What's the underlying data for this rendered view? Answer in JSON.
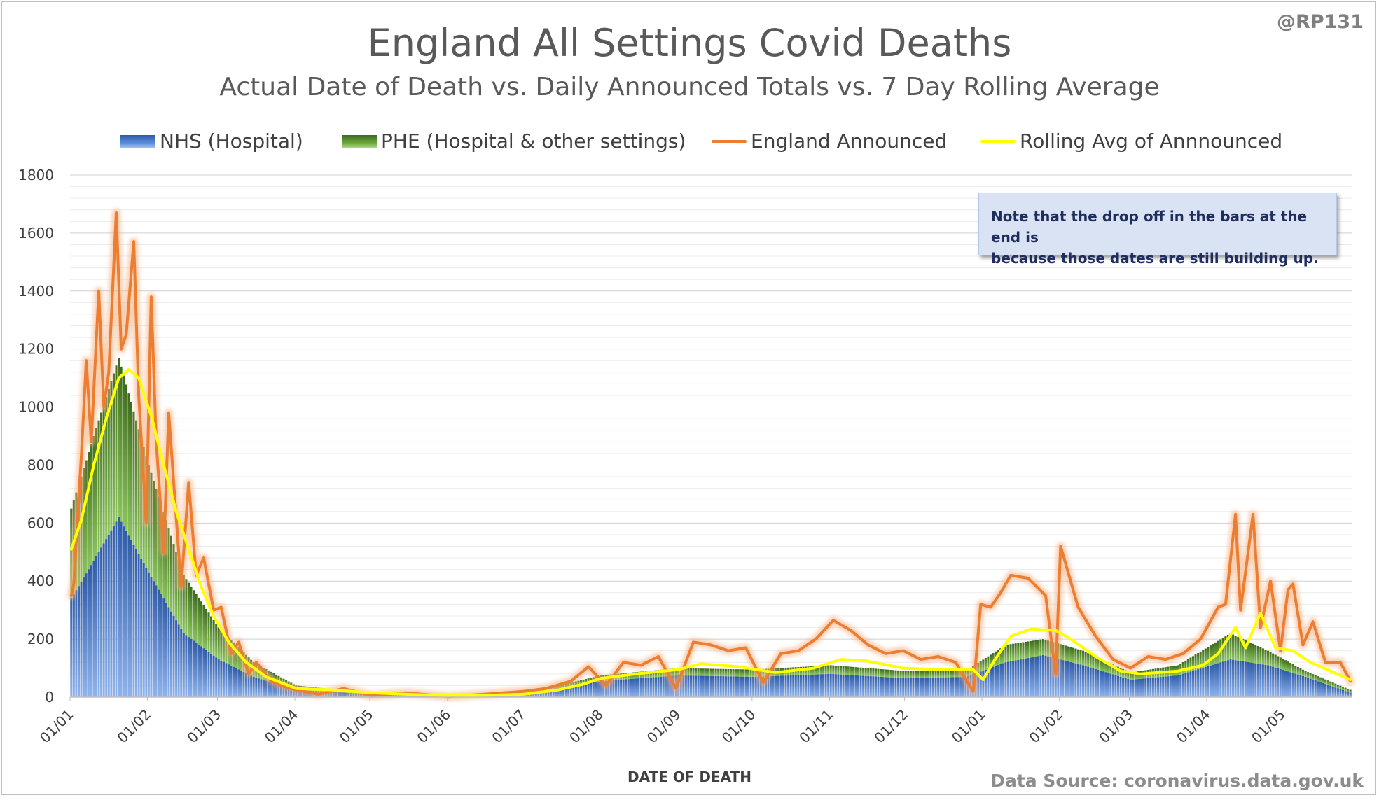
{
  "title": "England All Settings Covid Deaths",
  "subtitle": "Actual Date of Death vs. Daily Announced Totals vs. 7 Day Rolling Average",
  "handle": "@RP131",
  "note": {
    "line1": "Note that the drop off in the bars at the end is",
    "line2": "because those dates are still building up."
  },
  "source": "Data Source: coronavirus.data.gov.uk",
  "legend": [
    {
      "label": "NHS (Hospital)",
      "color": "#4472c4"
    },
    {
      "label": "PHE (Hospital & other settings)",
      "color": "#70ad47"
    },
    {
      "label": "England Announced",
      "color": "#ed7d31"
    },
    {
      "label": "Rolling Avg of Annnounced",
      "color": "#ffff00"
    }
  ],
  "chart_data": {
    "type": "bar",
    "xlabel": "DATE OF DEATH",
    "ylabel": "",
    "ylim": [
      0,
      1800
    ],
    "y_ticks": [
      0,
      200,
      400,
      600,
      800,
      1000,
      1200,
      1400,
      1600,
      1800
    ],
    "x_tick_labels": [
      "01/01",
      "01/02",
      "01/03",
      "01/04",
      "01/05",
      "01/06",
      "01/07",
      "01/08",
      "01/09",
      "01/10",
      "01/11",
      "01/12",
      "01/01",
      "01/02",
      "01/03",
      "01/04",
      "01/05"
    ],
    "x_range": [
      "2021-01-01",
      "2022-05-28"
    ],
    "stacked": true,
    "bar_series": [
      {
        "name": "NHS (Hospital)",
        "color": "#4472c4",
        "points": [
          [
            "2021-01-01",
            340
          ],
          [
            "2021-01-10",
            470
          ],
          [
            "2021-01-20",
            620
          ],
          [
            "2021-02-01",
            430
          ],
          [
            "2021-02-15",
            220
          ],
          [
            "2021-03-01",
            130
          ],
          [
            "2021-03-15",
            70
          ],
          [
            "2021-04-01",
            25
          ],
          [
            "2021-05-01",
            10
          ],
          [
            "2021-06-01",
            4
          ],
          [
            "2021-07-01",
            10
          ],
          [
            "2021-07-15",
            30
          ],
          [
            "2021-08-01",
            55
          ],
          [
            "2021-09-01",
            75
          ],
          [
            "2021-10-01",
            70
          ],
          [
            "2021-11-01",
            80
          ],
          [
            "2021-12-01",
            65
          ],
          [
            "2021-12-25",
            70
          ],
          [
            "2022-01-10",
            120
          ],
          [
            "2022-01-25",
            145
          ],
          [
            "2022-02-10",
            110
          ],
          [
            "2022-03-01",
            60
          ],
          [
            "2022-03-20",
            75
          ],
          [
            "2022-04-10",
            130
          ],
          [
            "2022-04-25",
            110
          ],
          [
            "2022-05-10",
            70
          ],
          [
            "2022-05-28",
            15
          ]
        ]
      },
      {
        "name": "PHE (Hospital & other settings)",
        "color": "#70ad47",
        "points": [
          [
            "2021-01-01",
            650
          ],
          [
            "2021-01-10",
            900
          ],
          [
            "2021-01-20",
            1170
          ],
          [
            "2021-02-01",
            800
          ],
          [
            "2021-02-15",
            420
          ],
          [
            "2021-03-01",
            240
          ],
          [
            "2021-03-15",
            120
          ],
          [
            "2021-04-01",
            40
          ],
          [
            "2021-05-01",
            15
          ],
          [
            "2021-06-01",
            6
          ],
          [
            "2021-07-01",
            15
          ],
          [
            "2021-07-15",
            40
          ],
          [
            "2021-08-01",
            75
          ],
          [
            "2021-09-01",
            100
          ],
          [
            "2021-10-01",
            95
          ],
          [
            "2021-11-01",
            110
          ],
          [
            "2021-12-01",
            90
          ],
          [
            "2021-12-25",
            90
          ],
          [
            "2022-01-10",
            180
          ],
          [
            "2022-01-25",
            200
          ],
          [
            "2022-02-10",
            160
          ],
          [
            "2022-03-01",
            85
          ],
          [
            "2022-03-20",
            110
          ],
          [
            "2022-04-10",
            220
          ],
          [
            "2022-04-25",
            160
          ],
          [
            "2022-05-10",
            90
          ],
          [
            "2022-05-28",
            25
          ]
        ]
      }
    ],
    "line_series": [
      {
        "name": "England Announced",
        "color": "#ed7d31",
        "points": [
          [
            "2021-01-01",
            350
          ],
          [
            "2021-01-02",
            390
          ],
          [
            "2021-01-05",
            830
          ],
          [
            "2021-01-07",
            1160
          ],
          [
            "2021-01-09",
            880
          ],
          [
            "2021-01-12",
            1400
          ],
          [
            "2021-01-14",
            1000
          ],
          [
            "2021-01-16",
            1120
          ],
          [
            "2021-01-19",
            1670
          ],
          [
            "2021-01-21",
            1200
          ],
          [
            "2021-01-23",
            1250
          ],
          [
            "2021-01-26",
            1570
          ],
          [
            "2021-01-28",
            1040
          ],
          [
            "2021-01-31",
            600
          ],
          [
            "2021-02-02",
            1380
          ],
          [
            "2021-02-04",
            880
          ],
          [
            "2021-02-07",
            500
          ],
          [
            "2021-02-09",
            980
          ],
          [
            "2021-02-12",
            620
          ],
          [
            "2021-02-14",
            380
          ],
          [
            "2021-02-17",
            740
          ],
          [
            "2021-02-20",
            420
          ],
          [
            "2021-02-23",
            480
          ],
          [
            "2021-02-27",
            300
          ],
          [
            "2021-03-02",
            310
          ],
          [
            "2021-03-06",
            150
          ],
          [
            "2021-03-09",
            190
          ],
          [
            "2021-03-13",
            80
          ],
          [
            "2021-03-16",
            120
          ],
          [
            "2021-03-22",
            55
          ],
          [
            "2021-03-26",
            40
          ],
          [
            "2021-04-01",
            25
          ],
          [
            "2021-04-10",
            10
          ],
          [
            "2021-04-20",
            30
          ],
          [
            "2021-05-01",
            5
          ],
          [
            "2021-05-15",
            15
          ],
          [
            "2021-06-01",
            2
          ],
          [
            "2021-06-15",
            10
          ],
          [
            "2021-07-01",
            20
          ],
          [
            "2021-07-10",
            30
          ],
          [
            "2021-07-20",
            55
          ],
          [
            "2021-07-27",
            105
          ],
          [
            "2021-08-03",
            40
          ],
          [
            "2021-08-10",
            120
          ],
          [
            "2021-08-17",
            110
          ],
          [
            "2021-08-24",
            140
          ],
          [
            "2021-08-31",
            30
          ],
          [
            "2021-09-07",
            190
          ],
          [
            "2021-09-14",
            180
          ],
          [
            "2021-09-21",
            160
          ],
          [
            "2021-09-28",
            170
          ],
          [
            "2021-10-05",
            50
          ],
          [
            "2021-10-12",
            150
          ],
          [
            "2021-10-19",
            160
          ],
          [
            "2021-10-26",
            200
          ],
          [
            "2021-11-02",
            265
          ],
          [
            "2021-11-09",
            230
          ],
          [
            "2021-11-16",
            180
          ],
          [
            "2021-11-23",
            150
          ],
          [
            "2021-11-30",
            160
          ],
          [
            "2021-12-07",
            130
          ],
          [
            "2021-12-14",
            140
          ],
          [
            "2021-12-21",
            120
          ],
          [
            "2021-12-28",
            20
          ],
          [
            "2021-12-31",
            320
          ],
          [
            "2022-01-04",
            310
          ],
          [
            "2022-01-08",
            360
          ],
          [
            "2022-01-12",
            420
          ],
          [
            "2022-01-19",
            410
          ],
          [
            "2022-01-26",
            350
          ],
          [
            "2022-01-30",
            80
          ],
          [
            "2022-02-01",
            520
          ],
          [
            "2022-02-08",
            310
          ],
          [
            "2022-02-15",
            210
          ],
          [
            "2022-02-22",
            130
          ],
          [
            "2022-03-01",
            100
          ],
          [
            "2022-03-08",
            140
          ],
          [
            "2022-03-15",
            130
          ],
          [
            "2022-03-22",
            150
          ],
          [
            "2022-03-29",
            200
          ],
          [
            "2022-04-05",
            310
          ],
          [
            "2022-04-08",
            320
          ],
          [
            "2022-04-12",
            630
          ],
          [
            "2022-04-14",
            300
          ],
          [
            "2022-04-19",
            630
          ],
          [
            "2022-04-22",
            240
          ],
          [
            "2022-04-26",
            400
          ],
          [
            "2022-04-30",
            160
          ],
          [
            "2022-05-03",
            370
          ],
          [
            "2022-05-05",
            390
          ],
          [
            "2022-05-09",
            180
          ],
          [
            "2022-05-13",
            260
          ],
          [
            "2022-05-18",
            120
          ],
          [
            "2022-05-24",
            120
          ],
          [
            "2022-05-28",
            55
          ]
        ]
      },
      {
        "name": "Rolling Avg of Annnounced",
        "color": "#ffff00",
        "points": [
          [
            "2021-01-01",
            510
          ],
          [
            "2021-01-05",
            610
          ],
          [
            "2021-01-10",
            800
          ],
          [
            "2021-01-15",
            960
          ],
          [
            "2021-01-20",
            1100
          ],
          [
            "2021-01-24",
            1130
          ],
          [
            "2021-01-28",
            1100
          ],
          [
            "2021-02-02",
            970
          ],
          [
            "2021-02-07",
            800
          ],
          [
            "2021-02-12",
            640
          ],
          [
            "2021-02-17",
            510
          ],
          [
            "2021-02-22",
            380
          ],
          [
            "2021-02-27",
            280
          ],
          [
            "2021-03-05",
            190
          ],
          [
            "2021-03-12",
            120
          ],
          [
            "2021-03-20",
            70
          ],
          [
            "2021-04-01",
            30
          ],
          [
            "2021-04-15",
            25
          ],
          [
            "2021-05-01",
            15
          ],
          [
            "2021-05-15",
            10
          ],
          [
            "2021-06-01",
            5
          ],
          [
            "2021-06-15",
            6
          ],
          [
            "2021-07-01",
            10
          ],
          [
            "2021-07-15",
            25
          ],
          [
            "2021-07-25",
            45
          ],
          [
            "2021-08-01",
            65
          ],
          [
            "2021-08-15",
            80
          ],
          [
            "2021-09-01",
            95
          ],
          [
            "2021-09-10",
            115
          ],
          [
            "2021-09-25",
            105
          ],
          [
            "2021-10-10",
            85
          ],
          [
            "2021-10-25",
            100
          ],
          [
            "2021-11-05",
            130
          ],
          [
            "2021-11-15",
            125
          ],
          [
            "2021-11-30",
            100
          ],
          [
            "2021-12-15",
            95
          ],
          [
            "2021-12-28",
            95
          ],
          [
            "2022-01-01",
            60
          ],
          [
            "2022-01-05",
            120
          ],
          [
            "2022-01-12",
            210
          ],
          [
            "2022-01-20",
            235
          ],
          [
            "2022-01-30",
            230
          ],
          [
            "2022-02-05",
            200
          ],
          [
            "2022-02-15",
            140
          ],
          [
            "2022-02-25",
            90
          ],
          [
            "2022-03-05",
            80
          ],
          [
            "2022-03-20",
            90
          ],
          [
            "2022-03-30",
            110
          ],
          [
            "2022-04-05",
            150
          ],
          [
            "2022-04-12",
            240
          ],
          [
            "2022-04-16",
            170
          ],
          [
            "2022-04-22",
            290
          ],
          [
            "2022-04-28",
            170
          ],
          [
            "2022-05-05",
            160
          ],
          [
            "2022-05-12",
            120
          ],
          [
            "2022-05-20",
            90
          ],
          [
            "2022-05-28",
            60
          ]
        ]
      }
    ]
  }
}
